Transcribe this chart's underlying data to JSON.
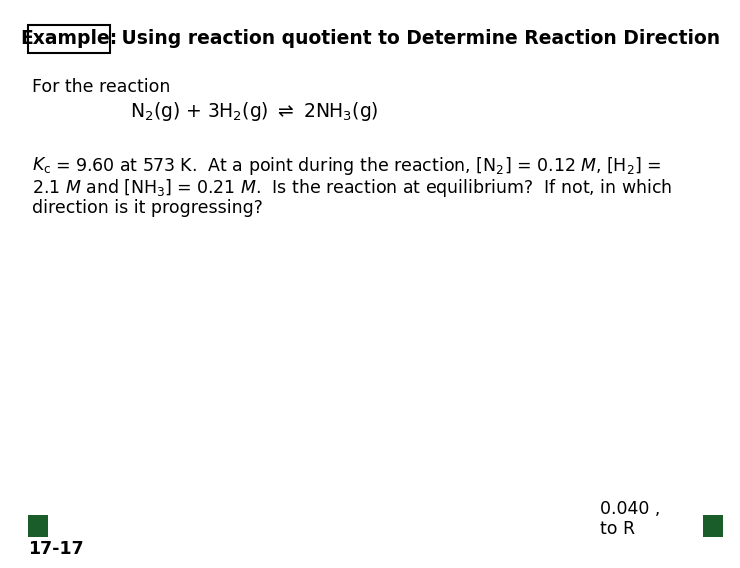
{
  "background_color": "#ffffff",
  "title_box_text": "Example:",
  "title_rest_text": " Using reaction quotient to Determine Reaction Direction",
  "for_the_reaction": "For the reaction",
  "bottom_left_text": "17-17",
  "bottom_right_text1": "0.040 ,",
  "bottom_right_text2": "to R",
  "square_color": "#1a5c2a",
  "title_fontsize": 13.5,
  "body_fontsize": 12.5,
  "reaction_fontsize": 13.5,
  "small_fontsize": 11.5
}
